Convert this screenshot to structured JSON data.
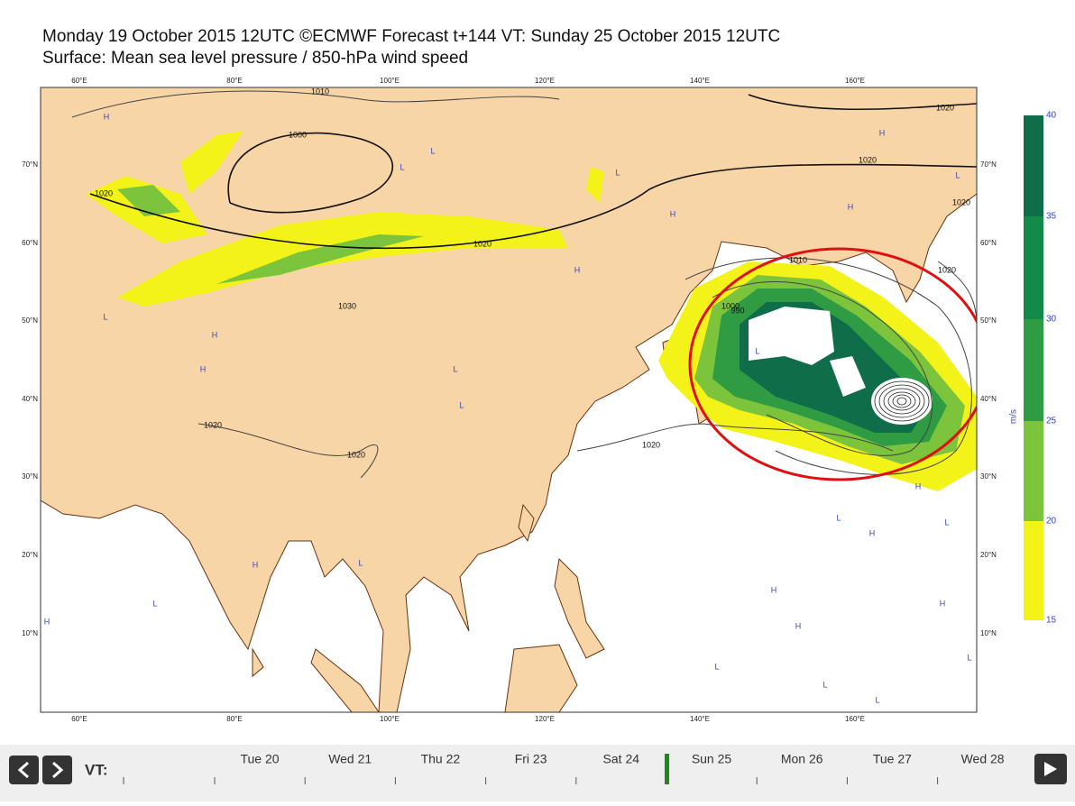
{
  "header": {
    "title": "Monday 19 October 2015 12UTC ©ECMWF Forecast t+144 VT: Sunday 25 October 2015 12UTC",
    "subtitle": "Surface: Mean sea level pressure / 850-hPa wind speed"
  },
  "map": {
    "lon_labels": [
      "60°E",
      "80°E",
      "100°E",
      "120°E",
      "140°E",
      "160°E"
    ],
    "lat_labels": [
      "70°N",
      "60°N",
      "50°N",
      "40°N",
      "30°N",
      "20°N",
      "10°N"
    ],
    "isobar_labels": [
      "1010",
      "1020",
      "1000",
      "1020",
      "1020",
      "1020",
      "1030",
      "1020",
      "1020",
      "1020",
      "1010",
      "1000",
      "990",
      "1020",
      "1020"
    ],
    "pressure_centers": [
      "H",
      "L",
      "L",
      "H",
      "L",
      "H",
      "H",
      "L",
      "H",
      "L",
      "L",
      "L",
      "H",
      "L",
      "H",
      "L",
      "H",
      "H",
      "L",
      "H",
      "L",
      "L",
      "H",
      "H",
      "L",
      "L",
      "H",
      "L",
      "H",
      "L"
    ]
  },
  "colorbar": {
    "labels": [
      "15",
      "20",
      "25",
      "30",
      "35",
      "40"
    ],
    "unit": "m/s"
  },
  "timeline": {
    "label": "VT:",
    "days": [
      "Tue 20",
      "Wed 21",
      "Thu 22",
      "Fri 23",
      "Sat 24",
      "Sun 25",
      "Mon 26",
      "Tue 27",
      "Wed 28"
    ]
  }
}
